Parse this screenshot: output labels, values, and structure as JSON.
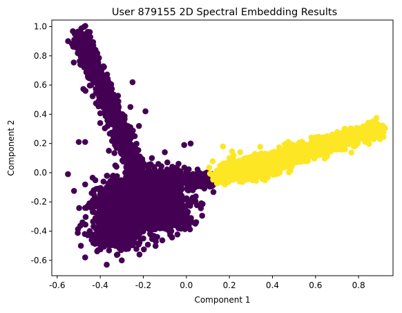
{
  "chart_data": {
    "type": "scatter",
    "title": "User 879155 2D Spectral Embedding Results",
    "xlabel": "Component 1",
    "ylabel": "Component 2",
    "xlim": [
      -0.625,
      0.96
    ],
    "ylim": [
      -0.705,
      1.045
    ],
    "xticks": [
      "-0.6",
      "-0.4",
      "-0.2",
      "0.0",
      "0.2",
      "0.4",
      "0.6",
      "0.8"
    ],
    "yticks": [
      "-0.6",
      "-0.4",
      "-0.2",
      "0.0",
      "0.2",
      "0.4",
      "0.6",
      "0.8",
      "1.0"
    ],
    "grid": false,
    "series": [
      {
        "color": "#440154",
        "clusters": [
          {
            "kind": "gauss",
            "cx": -0.25,
            "cy": -0.22,
            "sx": 0.08,
            "sy": 0.09,
            "n": 1300
          },
          {
            "kind": "gauss",
            "cx": -0.15,
            "cy": -0.12,
            "sx": 0.07,
            "sy": 0.07,
            "n": 500
          },
          {
            "kind": "gauss",
            "cx": -0.32,
            "cy": -0.38,
            "sx": 0.06,
            "sy": 0.07,
            "n": 350
          },
          {
            "kind": "line",
            "x0": -0.5,
            "y0": 0.95,
            "x1": -0.23,
            "y1": 0.02,
            "spread": 0.035,
            "n": 900
          },
          {
            "kind": "line",
            "x0": -0.18,
            "y0": -0.05,
            "x1": 0.12,
            "y1": -0.06,
            "spread": 0.03,
            "n": 250
          },
          {
            "kind": "gauss",
            "cx": -0.08,
            "cy": -0.28,
            "sx": 0.06,
            "sy": 0.06,
            "n": 250
          }
        ],
        "points": [
          [
            -0.55,
            -0.01
          ],
          [
            -0.5,
            0.21
          ],
          [
            -0.47,
            0.21
          ],
          [
            -0.47,
            -0.08
          ],
          [
            -0.45,
            -0.21
          ],
          [
            -0.44,
            -0.14
          ],
          [
            -0.43,
            -0.27
          ],
          [
            -0.41,
            -0.31
          ],
          [
            -0.4,
            0.34
          ],
          [
            -0.38,
            -0.38
          ],
          [
            -0.37,
            -0.1
          ],
          [
            -0.36,
            0.15
          ],
          [
            -0.35,
            -0.45
          ],
          [
            -0.34,
            -0.02
          ],
          [
            -0.33,
            0.05
          ],
          [
            -0.33,
            -0.5
          ],
          [
            -0.32,
            -0.56
          ],
          [
            -0.31,
            0.22
          ],
          [
            -0.3,
            -0.6
          ],
          [
            -0.29,
            0.34
          ],
          [
            -0.27,
            -0.52
          ],
          [
            -0.26,
            0.45
          ],
          [
            -0.25,
            0.62
          ],
          [
            -0.24,
            -0.48
          ],
          [
            -0.22,
            0.05
          ],
          [
            -0.2,
            -0.45
          ],
          [
            -0.19,
            -0.38
          ],
          [
            -0.16,
            0.1
          ],
          [
            -0.15,
            0.04
          ],
          [
            -0.13,
            0.06
          ],
          [
            -0.12,
            0.0
          ],
          [
            -0.11,
            -0.02
          ],
          [
            -0.1,
            0.14
          ],
          [
            -0.08,
            -0.4
          ],
          [
            -0.06,
            -0.33
          ],
          [
            -0.04,
            -0.05
          ],
          [
            -0.01,
            0.19
          ],
          [
            0.0,
            0.01
          ],
          [
            0.02,
            0.2
          ],
          [
            0.03,
            -0.12
          ],
          [
            0.04,
            -0.1
          ],
          [
            0.06,
            0.0
          ],
          [
            0.08,
            -0.03
          ],
          [
            0.1,
            -0.05
          ],
          [
            -0.49,
            -0.5
          ],
          [
            -0.47,
            -0.58
          ],
          [
            -0.44,
            -0.46
          ],
          [
            -0.41,
            -0.53
          ],
          [
            -0.37,
            -0.63
          ],
          [
            -0.29,
            0.09
          ],
          [
            -0.28,
            0.14
          ],
          [
            -0.24,
            0.25
          ],
          [
            -0.22,
            0.32
          ],
          [
            -0.19,
            0.42
          ],
          [
            -0.33,
            0.38
          ],
          [
            -0.32,
            0.28
          ]
        ]
      },
      {
        "color": "#fde725",
        "clusters": [
          {
            "kind": "line",
            "x0": 0.15,
            "y0": -0.03,
            "x1": 0.9,
            "y1": 0.3,
            "spread": 0.03,
            "n": 1400
          },
          {
            "kind": "gauss",
            "cx": 0.3,
            "cy": 0.03,
            "sx": 0.07,
            "sy": 0.035,
            "n": 300
          }
        ],
        "points": [
          [
            0.17,
            0.18
          ],
          [
            0.18,
            -0.08
          ],
          [
            0.2,
            0.1
          ],
          [
            0.25,
            0.14
          ],
          [
            0.42,
            0.07
          ],
          [
            0.55,
            0.12
          ],
          [
            0.67,
            0.19
          ],
          [
            0.85,
            0.31
          ],
          [
            0.91,
            0.3
          ],
          [
            0.89,
            0.29
          ],
          [
            0.79,
            0.24
          ],
          [
            0.72,
            0.27
          ]
        ]
      }
    ]
  }
}
